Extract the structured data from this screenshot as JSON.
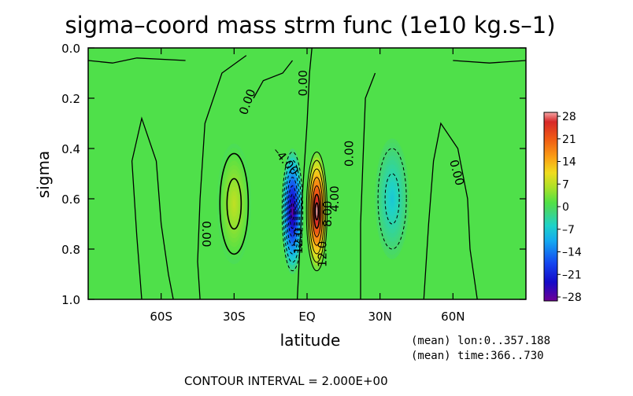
{
  "chart_data": {
    "type": "heatmap",
    "title": "sigma–coord mass strm func (1e10 kg.s–1)",
    "xlabel": "latitude",
    "ylabel": "sigma",
    "x_range": [
      -90,
      90
    ],
    "y_range": [
      0.0,
      1.0
    ],
    "y_inverted": true,
    "x_ticks": [
      {
        "value": -60,
        "label": "60S"
      },
      {
        "value": -30,
        "label": "30S"
      },
      {
        "value": 0,
        "label": "EQ"
      },
      {
        "value": 30,
        "label": "30N"
      },
      {
        "value": 60,
        "label": "60N"
      }
    ],
    "y_ticks": [
      {
        "value": 0.0,
        "label": "0.0"
      },
      {
        "value": 0.2,
        "label": "0.2"
      },
      {
        "value": 0.4,
        "label": "0.4"
      },
      {
        "value": 0.6,
        "label": "0.6"
      },
      {
        "value": 0.8,
        "label": "0.8"
      },
      {
        "value": 1.0,
        "label": "1.0"
      }
    ],
    "colorbar": {
      "range": [
        -28,
        28
      ],
      "ticks": [
        "28",
        "21",
        "14",
        "7",
        "0",
        "–7",
        "–14",
        "–21",
        "–28"
      ],
      "placement": "right"
    },
    "cells": [
      {
        "lat": -6,
        "sigma": 0.65,
        "amp": -28,
        "wx": 4.5,
        "wy": 0.25
      },
      {
        "lat": 4,
        "sigma": 0.65,
        "amp": 30,
        "wx": 4.5,
        "wy": 0.25
      },
      {
        "lat": -30,
        "sigma": 0.62,
        "amp": 7,
        "wx": 7,
        "wy": 0.24
      },
      {
        "lat": 35,
        "sigma": 0.6,
        "amp": -7,
        "wx": 7,
        "wy": 0.24
      }
    ],
    "contour_labels": [
      {
        "text": "0.00",
        "lat": -23,
        "sigma": 0.22,
        "angle": -70
      },
      {
        "text": "–4.00",
        "lat": -10,
        "sigma": 0.46,
        "angle": 50
      },
      {
        "text": "0.00",
        "lat": 0,
        "sigma": 0.14,
        "angle": -90
      },
      {
        "text": "0.00",
        "lat": 19,
        "sigma": 0.42,
        "angle": -90
      },
      {
        "text": "0.00",
        "lat": -43,
        "sigma": 0.74,
        "angle": 90
      },
      {
        "text": "0.00",
        "lat": 60,
        "sigma": 0.5,
        "angle": 75
      },
      {
        "text": "8.00",
        "lat": 10,
        "sigma": 0.66,
        "angle": -90
      },
      {
        "text": "4.00",
        "lat": 13,
        "sigma": 0.6,
        "angle": -90
      },
      {
        "text": "12.0",
        "lat": 8,
        "sigma": 0.82,
        "angle": -90
      },
      {
        "text": "–12.0",
        "lat": -2,
        "sigma": 0.78,
        "angle": -90
      }
    ],
    "contour_interval": "CONTOUR INTERVAL = 2.000E+00",
    "annotations": [
      "(mean) lon:0..357.188",
      "(mean) time:366..730"
    ]
  }
}
